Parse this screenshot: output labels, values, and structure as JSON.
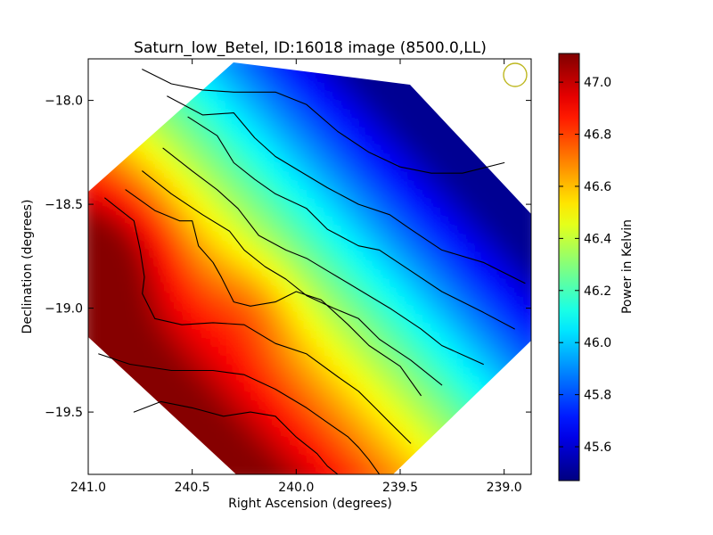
{
  "chart_data": {
    "type": "heatmap",
    "title": "Saturn_low_Betel, ID:16018 image (8500.0,LL)",
    "xlabel": "Right Ascension (degrees)",
    "ylabel": "Declination (degrees)",
    "xlim": [
      241.0,
      238.87
    ],
    "ylim": [
      -19.8,
      -17.8
    ],
    "xticks": [
      "241.0",
      "240.5",
      "240.0",
      "239.5",
      "239.0"
    ],
    "xtick_values": [
      241.0,
      240.5,
      240.0,
      239.5,
      239.0
    ],
    "yticks": [
      "−18.0",
      "−18.5",
      "−19.0",
      "−19.5"
    ],
    "ytick_values": [
      -18.0,
      -18.5,
      -19.0,
      -19.5
    ],
    "colorbar": {
      "label": "Power in Kelvin",
      "range": [
        45.47,
        47.11
      ],
      "ticks": [
        "45.6",
        "45.8",
        "46.0",
        "46.2",
        "46.4",
        "46.6",
        "46.8",
        "47.0"
      ],
      "tick_values": [
        45.6,
        45.8,
        46.0,
        46.2,
        46.4,
        46.6,
        46.8,
        47.0
      ],
      "colormap": "jet"
    },
    "grid": false,
    "beam_marker": {
      "shape": "circle",
      "color": "#bdb71f"
    },
    "surface": {
      "description_values": "approximate power field, decreasing from lower-left (~47.1 K) to upper-right (~45.5 K)",
      "max_value": 47.1,
      "min_value": 45.5
    },
    "contours": [
      {
        "level": "c1",
        "ra": [
          240.74,
          240.6,
          240.45,
          240.3,
          240.1,
          239.95,
          239.8,
          239.65,
          239.5,
          239.35,
          239.2,
          239.0
        ],
        "dec": [
          -17.85,
          -17.92,
          -17.95,
          -17.96,
          -17.96,
          -18.02,
          -18.15,
          -18.25,
          -18.32,
          -18.35,
          -18.35,
          -18.3
        ]
      },
      {
        "level": "c2",
        "ra": [
          240.62,
          240.45,
          240.3,
          240.2,
          240.1,
          240.0,
          239.85,
          239.7,
          239.55,
          239.45,
          239.3,
          239.1,
          238.9
        ],
        "dec": [
          -17.98,
          -18.07,
          -18.06,
          -18.18,
          -18.27,
          -18.33,
          -18.42,
          -18.5,
          -18.55,
          -18.62,
          -18.72,
          -18.78,
          -18.88
        ]
      },
      {
        "level": "c3",
        "ra": [
          240.52,
          240.38,
          240.3,
          240.2,
          240.1,
          239.95,
          239.85,
          239.7,
          239.6,
          239.45,
          239.3,
          239.1,
          238.95
        ],
        "dec": [
          -18.08,
          -18.17,
          -18.3,
          -18.38,
          -18.45,
          -18.52,
          -18.62,
          -18.7,
          -18.72,
          -18.82,
          -18.92,
          -19.02,
          -19.1
        ]
      },
      {
        "level": "c4",
        "ra": [
          240.64,
          240.5,
          240.38,
          240.28,
          240.18,
          240.05,
          239.95,
          239.85,
          239.75,
          239.65,
          239.55,
          239.4,
          239.3,
          239.1
        ],
        "dec": [
          -18.23,
          -18.34,
          -18.43,
          -18.52,
          -18.65,
          -18.72,
          -18.76,
          -18.82,
          -18.88,
          -18.94,
          -19.0,
          -19.1,
          -19.18,
          -19.27
        ]
      },
      {
        "level": "c5",
        "ra": [
          240.74,
          240.6,
          240.45,
          240.32,
          240.25,
          240.15,
          240.05,
          239.95,
          239.82,
          239.7,
          239.6,
          239.45,
          239.3
        ],
        "dec": [
          -18.34,
          -18.45,
          -18.55,
          -18.63,
          -18.72,
          -18.8,
          -18.86,
          -18.94,
          -19.0,
          -19.05,
          -19.15,
          -19.25,
          -19.37
        ]
      },
      {
        "level": "c6",
        "ra": [
          240.82,
          240.68,
          240.56,
          240.5,
          240.47,
          240.4,
          240.36,
          240.3,
          240.22,
          240.1,
          240.0,
          239.88,
          239.75,
          239.65,
          239.5,
          239.4
        ],
        "dec": [
          -18.43,
          -18.53,
          -18.58,
          -18.58,
          -18.7,
          -18.78,
          -18.85,
          -18.97,
          -18.99,
          -18.97,
          -18.92,
          -18.96,
          -19.08,
          -19.18,
          -19.28,
          -19.42
        ]
      },
      {
        "level": "c7",
        "ra": [
          240.92,
          240.78,
          240.75,
          240.73,
          240.74,
          240.68,
          240.55,
          240.4,
          240.25,
          240.1,
          239.95,
          239.8,
          239.7,
          239.62,
          239.55,
          239.45
        ],
        "dec": [
          -18.47,
          -18.58,
          -18.72,
          -18.85,
          -18.93,
          -19.05,
          -19.08,
          -19.07,
          -19.08,
          -19.17,
          -19.22,
          -19.33,
          -19.4,
          -19.48,
          -19.55,
          -19.65
        ]
      },
      {
        "level": "c8",
        "ra": [
          240.95,
          240.8,
          240.6,
          240.4,
          240.25,
          240.1,
          239.95,
          239.85,
          239.75,
          239.7,
          239.65,
          239.6
        ],
        "dec": [
          -19.22,
          -19.27,
          -19.3,
          -19.3,
          -19.32,
          -19.39,
          -19.48,
          -19.55,
          -19.62,
          -19.67,
          -19.73,
          -19.8
        ]
      },
      {
        "level": "c9",
        "ra": [
          240.78,
          240.65,
          240.5,
          240.35,
          240.22,
          240.1,
          240.0,
          239.9,
          239.85,
          239.8
        ],
        "dec": [
          -19.5,
          -19.45,
          -19.48,
          -19.52,
          -19.5,
          -19.52,
          -19.62,
          -19.7,
          -19.76,
          -19.8
        ]
      }
    ]
  }
}
